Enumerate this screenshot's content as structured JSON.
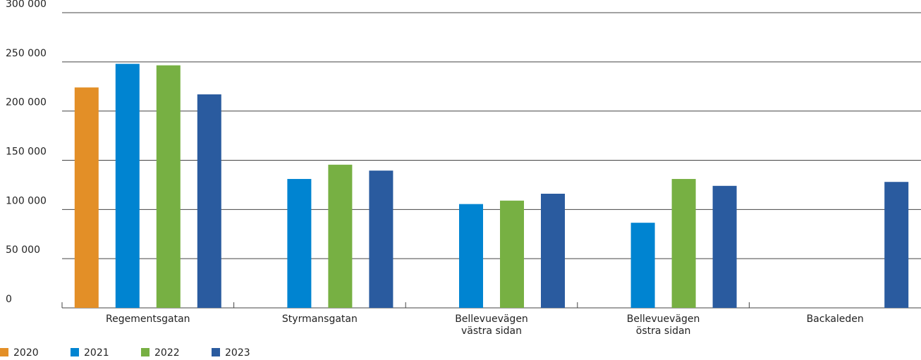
{
  "chart_data": {
    "type": "bar",
    "categories": [
      "Regementsgatan",
      "Styrmansgatan",
      "Bellevuevägen västra sidan",
      "Bellevuevägen östra sidan",
      "Backaleden"
    ],
    "series": [
      {
        "name": "2020",
        "color": "#e38f27",
        "values": [
          224000,
          null,
          null,
          null,
          null
        ]
      },
      {
        "name": "2021",
        "color": "#0084d1",
        "values": [
          248000,
          131000,
          105500,
          86500,
          null
        ]
      },
      {
        "name": "2022",
        "color": "#77b043",
        "values": [
          246500,
          145500,
          109000,
          131000,
          null
        ]
      },
      {
        "name": "2023",
        "color": "#2a5b9f",
        "values": [
          217000,
          139500,
          116000,
          124000,
          128000
        ]
      }
    ],
    "ylim": [
      0,
      300000
    ],
    "yticks": [
      0,
      {
        "value": 50000,
        "label": "50 000"
      },
      {
        "value": 100000,
        "label": "100 000"
      },
      {
        "value": 150000,
        "label": "150 000"
      },
      {
        "value": 200000,
        "label": "200 000"
      },
      {
        "value": 250000,
        "label": "250 000"
      },
      {
        "value": 300000,
        "label": "300 000"
      }
    ],
    "grid": true,
    "legend": "bottom-left"
  }
}
